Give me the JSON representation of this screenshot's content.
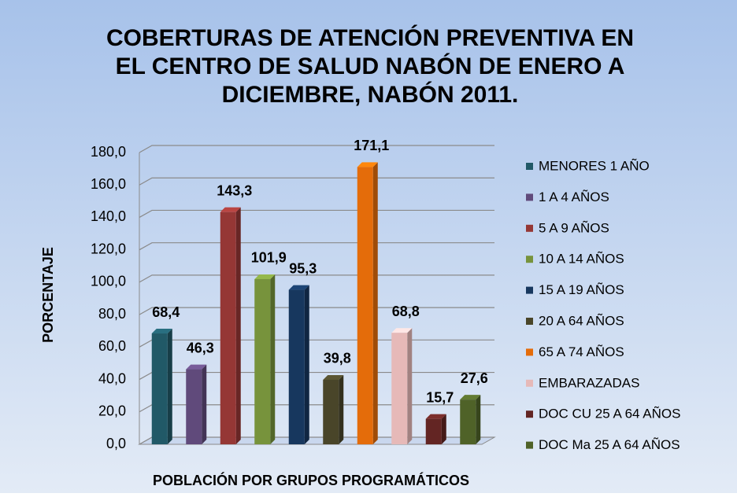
{
  "chart_data": {
    "type": "bar3d",
    "title": [
      "COBERTURAS DE ATENCIÓN PREVENTIVA EN",
      "EL CENTRO DE SALUD NABÓN DE ENERO A",
      "DICIEMBRE, NABÓN 2011."
    ],
    "ylabel": "PORCENTAJE",
    "xlabel": "POBLACIÓN POR GRUPOS PROGRAMÁTICOS",
    "ylim": [
      0,
      180
    ],
    "yticks": [
      {
        "value": 0,
        "label": "0,0"
      },
      {
        "value": 20,
        "label": "20,0"
      },
      {
        "value": 40,
        "label": "40,0"
      },
      {
        "value": 60,
        "label": "60,0"
      },
      {
        "value": 80,
        "label": "80,0"
      },
      {
        "value": 100,
        "label": "100,0"
      },
      {
        "value": 120,
        "label": "120,0"
      },
      {
        "value": 140,
        "label": "140,0"
      },
      {
        "value": 160,
        "label": "160,0"
      },
      {
        "value": 180,
        "label": "180,0"
      }
    ],
    "grid": true,
    "legend": "right",
    "series": [
      {
        "name": "MENORES 1 AÑO",
        "color": "#215967",
        "values": [
          68.4
        ],
        "value_labels": [
          "68,4"
        ]
      },
      {
        "name": "1 A 4 AÑOS",
        "color": "#604a7b",
        "values": [
          46.3
        ],
        "value_labels": [
          "46,3"
        ]
      },
      {
        "name": "5 A 9 AÑOS",
        "color": "#953735",
        "values": [
          143.3
        ],
        "value_labels": [
          "143,3"
        ]
      },
      {
        "name": "10 A 14 AÑOS",
        "color": "#77933c",
        "values": [
          101.9
        ],
        "value_labels": [
          "101,9"
        ]
      },
      {
        "name": "15 A 19 AÑOS",
        "color": "#17375e",
        "values": [
          95.3
        ],
        "value_labels": [
          "95,3"
        ]
      },
      {
        "name": "20 A 64 AÑOS",
        "color": "#494529",
        "values": [
          39.8
        ],
        "value_labels": [
          "39,8"
        ]
      },
      {
        "name": "65 A 74 AÑOS",
        "color": "#e46c0a",
        "values": [
          171.1
        ],
        "value_labels": [
          "171,1"
        ]
      },
      {
        "name": "EMBARAZADAS",
        "color": "#e6b9b8",
        "values": [
          68.8
        ],
        "value_labels": [
          "68,8"
        ]
      },
      {
        "name": "DOC CU 25 A 64 AÑOS",
        "color": "#632523",
        "values": [
          15.7
        ],
        "value_labels": [
          "15,7"
        ]
      },
      {
        "name": "DOC Ma 25 A 64 AÑOS",
        "color": "#4f6228",
        "values": [
          27.6
        ],
        "value_labels": [
          "27,6"
        ]
      }
    ]
  }
}
